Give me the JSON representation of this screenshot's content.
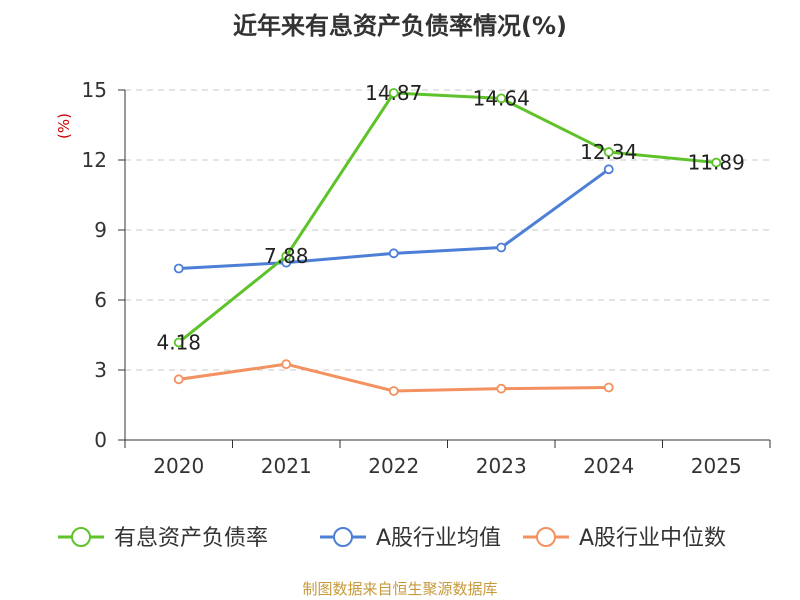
{
  "chart_data": {
    "type": "line",
    "title": "近年来有息资产负债率情况(%)",
    "ylabel": "(%)",
    "xlabel": "",
    "categories": [
      "2020",
      "2021",
      "2022",
      "2023",
      "2024",
      "2025"
    ],
    "ylim": [
      0,
      15
    ],
    "yticks": [
      0,
      3,
      6,
      9,
      12,
      15
    ],
    "grid": true,
    "legend_position": "bottom",
    "series": [
      {
        "name": "有息资产负债率",
        "color": "#5ec32a",
        "values": [
          4.18,
          7.88,
          14.87,
          14.64,
          12.34,
          11.89
        ],
        "labels": [
          "4.18",
          "7.88",
          "14.87",
          "14.64",
          "12.34",
          "11.89"
        ]
      },
      {
        "name": "A股行业均值",
        "color": "#4d7fd6",
        "values": [
          7.35,
          7.6,
          8.0,
          8.25,
          11.6,
          null
        ]
      },
      {
        "name": "A股行业中位数",
        "color": "#f39160",
        "values": [
          2.6,
          3.25,
          2.1,
          2.2,
          2.25,
          null
        ]
      }
    ],
    "source": "制图数据来自恒生聚源数据库"
  },
  "colors": {
    "axis": "#333333",
    "grid": "#c8c8c8",
    "unit": "#cc0000",
    "source": "#c79a3c"
  }
}
